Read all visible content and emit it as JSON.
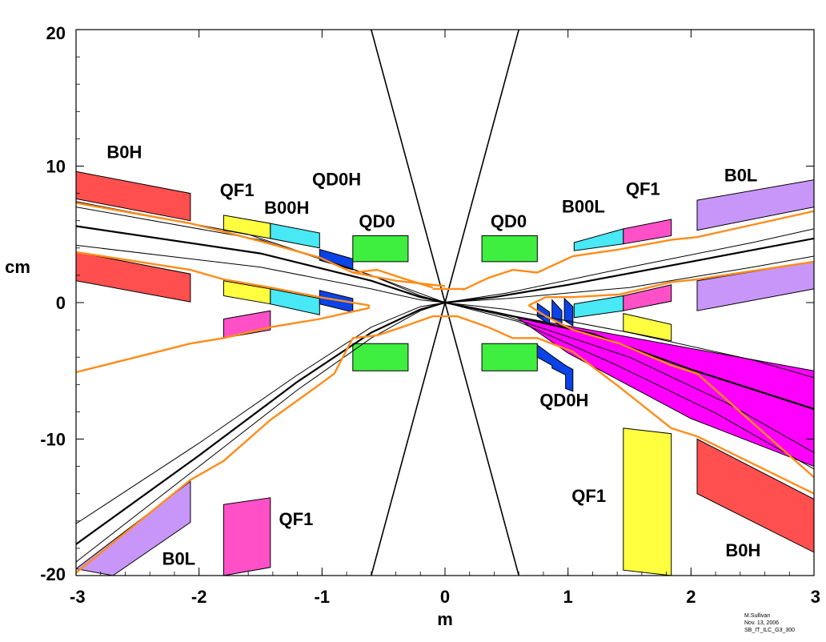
{
  "axes": {
    "x_label": "m",
    "y_label": "cm",
    "xlim": [
      -3,
      3
    ],
    "ylim": [
      -20,
      20
    ],
    "x_ticks": [
      {
        "value": -3,
        "label": "-3"
      },
      {
        "value": -2,
        "label": "-2"
      },
      {
        "value": -1,
        "label": "-1"
      },
      {
        "value": 0,
        "label": "0"
      },
      {
        "value": 1,
        "label": "1"
      },
      {
        "value": 2,
        "label": "2"
      },
      {
        "value": 3,
        "label": "3"
      }
    ],
    "y_ticks": [
      {
        "value": 20,
        "label": "20"
      },
      {
        "value": 10,
        "label": "10"
      },
      {
        "value": 0,
        "label": "0"
      },
      {
        "value": -10,
        "label": "-10"
      },
      {
        "value": -20,
        "label": "-20"
      }
    ]
  },
  "colors": {
    "red": "#ff4f4f",
    "yellow": "#ffff40",
    "cyan": "#48e8f4",
    "blue": "#0b43e6",
    "green": "#3fef3f",
    "pink": "#ff50c8",
    "lavender": "#c896f8",
    "magenta": "#ff00ff",
    "orange": "#ff8c1a"
  },
  "magnets": [
    {
      "name": "B0H",
      "color": "red",
      "pts": [
        [
          -3,
          9.6
        ],
        [
          -2.07,
          8
        ],
        [
          -2.07,
          6
        ],
        [
          -3,
          7.6
        ]
      ]
    },
    {
      "name": "B0H",
      "color": "red",
      "pts": [
        [
          -3,
          3.7
        ],
        [
          -2.07,
          2.1
        ],
        [
          -2.07,
          0.05
        ],
        [
          -3,
          1.6
        ]
      ]
    },
    {
      "name": "QF1",
      "color": "yellow",
      "pts": [
        [
          -1.8,
          6.4
        ],
        [
          -1.42,
          5.8
        ],
        [
          -1.42,
          4.7
        ],
        [
          -1.8,
          5.3
        ]
      ]
    },
    {
      "name": "QF1",
      "color": "yellow",
      "pts": [
        [
          -1.8,
          1.6
        ],
        [
          -1.42,
          1.0
        ],
        [
          -1.42,
          -0.1
        ],
        [
          -1.8,
          0.5
        ]
      ]
    },
    {
      "name": "QF1",
      "color": "pink",
      "pts": [
        [
          -1.8,
          -1.2
        ],
        [
          -1.42,
          -0.6
        ],
        [
          -1.42,
          -2.0
        ],
        [
          -1.8,
          -2.6
        ]
      ]
    },
    {
      "name": "B00H",
      "color": "cyan",
      "pts": [
        [
          -1.42,
          5.8
        ],
        [
          -1.02,
          5.1
        ],
        [
          -1.02,
          4.0
        ],
        [
          -1.42,
          4.7
        ]
      ]
    },
    {
      "name": "B00H",
      "color": "cyan",
      "pts": [
        [
          -1.42,
          1.0
        ],
        [
          -1.02,
          0.3
        ],
        [
          -1.02,
          -0.9
        ],
        [
          -1.42,
          -0.1
        ]
      ]
    },
    {
      "name": "QD0H",
      "color": "blue",
      "pts": [
        [
          -1.02,
          3.9
        ],
        [
          -0.75,
          3.2
        ],
        [
          -0.75,
          2.4
        ],
        [
          -1.02,
          3.1
        ]
      ]
    },
    {
      "name": "QD0H",
      "color": "blue",
      "pts": [
        [
          -1.02,
          0.9
        ],
        [
          -0.75,
          0.3
        ],
        [
          -0.75,
          -0.7
        ],
        [
          -1.02,
          -0.1
        ]
      ]
    },
    {
      "name": "QD0",
      "color": "green",
      "pts": [
        [
          -0.75,
          4.9
        ],
        [
          -0.3,
          4.9
        ],
        [
          -0.3,
          3.0
        ],
        [
          -0.75,
          3.0
        ]
      ]
    },
    {
      "name": "QD0",
      "color": "green",
      "pts": [
        [
          -0.75,
          -3.0
        ],
        [
          -0.3,
          -3.0
        ],
        [
          -0.3,
          -5.0
        ],
        [
          -0.75,
          -5.0
        ]
      ]
    },
    {
      "name": "QD0",
      "color": "green",
      "pts": [
        [
          0.3,
          4.9
        ],
        [
          0.75,
          4.9
        ],
        [
          0.75,
          3.0
        ],
        [
          0.3,
          3.0
        ]
      ]
    },
    {
      "name": "QD0",
      "color": "green",
      "pts": [
        [
          0.3,
          -3.0
        ],
        [
          0.75,
          -3.0
        ],
        [
          0.75,
          -5.0
        ],
        [
          0.3,
          -5.0
        ]
      ]
    },
    {
      "name": "B00L",
      "color": "cyan",
      "pts": [
        [
          1.05,
          4.4
        ],
        [
          1.45,
          5.4
        ],
        [
          1.45,
          4.3
        ],
        [
          1.05,
          3.8
        ]
      ]
    },
    {
      "name": "B00L",
      "color": "cyan",
      "pts": [
        [
          1.05,
          -0.1
        ],
        [
          1.45,
          0.5
        ],
        [
          1.45,
          -0.6
        ],
        [
          1.05,
          -1.1
        ]
      ]
    },
    {
      "name": "QF1",
      "color": "pink",
      "pts": [
        [
          1.45,
          5.4
        ],
        [
          1.84,
          6.1
        ],
        [
          1.84,
          4.9
        ],
        [
          1.45,
          4.3
        ]
      ]
    },
    {
      "name": "QF1",
      "color": "pink",
      "pts": [
        [
          1.45,
          0.5
        ],
        [
          1.84,
          1.3
        ],
        [
          1.84,
          0.1
        ],
        [
          1.45,
          -0.6
        ]
      ]
    },
    {
      "name": "QF1",
      "color": "yellow",
      "pts": [
        [
          1.45,
          -0.8
        ],
        [
          1.84,
          -1.6
        ],
        [
          1.84,
          -2.8
        ],
        [
          1.45,
          -2.1
        ]
      ]
    },
    {
      "name": "QF1",
      "color": "yellow",
      "pts": [
        [
          1.45,
          -9.2
        ],
        [
          1.84,
          -9.6
        ],
        [
          1.84,
          -20.0
        ],
        [
          1.45,
          -19.6
        ]
      ]
    },
    {
      "name": "B0L",
      "color": "lavender",
      "pts": [
        [
          2.05,
          7.5
        ],
        [
          3,
          9.0
        ],
        [
          3,
          7.0
        ],
        [
          2.05,
          5.3
        ]
      ]
    },
    {
      "name": "B0L",
      "color": "lavender",
      "pts": [
        [
          2.05,
          1.6
        ],
        [
          3,
          3.0
        ],
        [
          3,
          1.0
        ],
        [
          2.05,
          -0.6
        ]
      ]
    },
    {
      "name": "B0H",
      "color": "red",
      "pts": [
        [
          2.05,
          -10.0
        ],
        [
          3,
          -14.4
        ],
        [
          3,
          -18.3
        ],
        [
          2.05,
          -14.0
        ]
      ]
    },
    {
      "name": "QF1",
      "color": "pink",
      "pts": [
        [
          -1.8,
          -14.8
        ],
        [
          -1.42,
          -14.3
        ],
        [
          -1.42,
          -19.4
        ],
        [
          -1.8,
          -20.0
        ]
      ]
    },
    {
      "name": "B0L",
      "color": "lavender",
      "pts": [
        [
          -2.7,
          -20.0
        ],
        [
          -2.07,
          -16.1
        ],
        [
          -2.07,
          -13.1
        ],
        [
          -3,
          -19.5
        ]
      ]
    }
  ],
  "magnet_blue_steps": [
    {
      "name": "QD0H",
      "color": "blue",
      "pts": [
        [
          0.75,
          -0.05
        ],
        [
          0.85,
          -0.7
        ],
        [
          0.85,
          -1.6
        ],
        [
          0.75,
          -1.0
        ]
      ]
    },
    {
      "name": "QD0H",
      "color": "blue",
      "pts": [
        [
          0.87,
          0.2
        ],
        [
          0.95,
          -0.6
        ],
        [
          0.95,
          -1.8
        ],
        [
          0.87,
          -1.2
        ]
      ]
    },
    {
      "name": "QD0H",
      "color": "blue",
      "pts": [
        [
          0.97,
          0.3
        ],
        [
          1.04,
          -0.3
        ],
        [
          1.04,
          -1.7
        ],
        [
          0.97,
          -1.3
        ]
      ]
    },
    {
      "name": "QD0H",
      "color": "blue",
      "pts": [
        [
          0.75,
          -3.1
        ],
        [
          0.87,
          -3.9
        ],
        [
          0.98,
          -4.6
        ],
        [
          1.04,
          -4.9
        ],
        [
          1.04,
          -6.5
        ],
        [
          0.98,
          -6.3
        ],
        [
          0.98,
          -5.3
        ],
        [
          0.87,
          -4.8
        ],
        [
          0.87,
          -4.6
        ],
        [
          0.75,
          -4.0
        ]
      ]
    }
  ],
  "magenta_fan": [
    [
      0.57,
      -1.0
    ],
    [
      3,
      -5.0
    ],
    [
      3,
      -12.0
    ],
    [
      2.0,
      -8.5
    ],
    [
      1.0,
      -3.7
    ]
  ],
  "beam_lines": [
    {
      "kind": "thick",
      "pts": [
        [
          -3,
          5.6
        ],
        [
          -1.5,
          3.6
        ],
        [
          -0.6,
          1.6
        ],
        [
          -0.2,
          0.4
        ],
        [
          0,
          0
        ],
        [
          0.4,
          -0.7
        ],
        [
          1.2,
          -2.3
        ],
        [
          2.0,
          -4.9
        ],
        [
          3,
          -7.8
        ]
      ]
    },
    {
      "kind": "thick",
      "pts": [
        [
          -3,
          -17.7
        ],
        [
          -2.0,
          -11.2
        ],
        [
          -1.2,
          -5.8
        ],
        [
          -0.6,
          -2.2
        ],
        [
          -0.2,
          -0.5
        ],
        [
          0,
          0
        ],
        [
          0.4,
          0.4
        ],
        [
          1.0,
          1.3
        ],
        [
          2.0,
          3.0
        ],
        [
          3,
          4.7
        ]
      ]
    },
    {
      "kind": "thin",
      "pts": [
        [
          -3,
          7.0
        ],
        [
          -1.5,
          4.6
        ],
        [
          -0.6,
          2.0
        ],
        [
          -0.2,
          0.5
        ],
        [
          0,
          0
        ],
        [
          0.5,
          -1.0
        ],
        [
          1.5,
          -4.0
        ],
        [
          2.3,
          -7.4
        ],
        [
          3,
          -11.0
        ]
      ]
    },
    {
      "kind": "thin",
      "pts": [
        [
          -3,
          4.2
        ],
        [
          -1.5,
          2.6
        ],
        [
          -0.6,
          1.0
        ],
        [
          -0.2,
          0.2
        ],
        [
          0,
          0
        ],
        [
          0.5,
          -0.5
        ],
        [
          1.5,
          -2.2
        ],
        [
          2.5,
          -4.2
        ],
        [
          3,
          -5.5
        ]
      ]
    },
    {
      "kind": "thin",
      "pts": [
        [
          -3,
          -16.2
        ],
        [
          -2.0,
          -10.3
        ],
        [
          -1.2,
          -5.3
        ],
        [
          -0.6,
          -1.8
        ],
        [
          -0.2,
          -0.3
        ],
        [
          0,
          0
        ],
        [
          0.5,
          0.7
        ],
        [
          1.5,
          2.6
        ],
        [
          2.5,
          4.4
        ],
        [
          3,
          5.4
        ]
      ]
    },
    {
      "kind": "thin",
      "pts": [
        [
          -3,
          -19.0
        ],
        [
          -2.0,
          -12.0
        ],
        [
          -1.2,
          -6.4
        ],
        [
          -0.6,
          -2.6
        ],
        [
          -0.2,
          -0.6
        ],
        [
          0,
          0
        ],
        [
          0.5,
          0.3
        ],
        [
          1.5,
          1.1
        ],
        [
          2.5,
          2.6
        ],
        [
          3,
          3.4
        ]
      ]
    },
    {
      "kind": "thin",
      "pts": [
        [
          -3,
          7.4
        ],
        [
          -1.6,
          5.0
        ],
        [
          -0.6,
          2.0
        ],
        [
          0,
          0
        ]
      ]
    },
    {
      "kind": "thin",
      "pts": [
        [
          0,
          0
        ],
        [
          0.6,
          -1.4
        ],
        [
          1.4,
          -4.6
        ],
        [
          2.2,
          -8.1
        ],
        [
          3,
          -12.2
        ]
      ]
    }
  ],
  "detector_lines": [
    {
      "pts": [
        [
          -0.6,
          20
        ],
        [
          0,
          0
        ],
        [
          -0.6,
          -20
        ]
      ]
    },
    {
      "pts": [
        [
          0.6,
          20
        ],
        [
          0,
          0
        ],
        [
          0.6,
          -20
        ]
      ]
    }
  ],
  "orange_lines": [
    {
      "pts": [
        [
          -3,
          7.3
        ],
        [
          -2.07,
          5.8
        ],
        [
          -1.8,
          5.2
        ],
        [
          -1.42,
          4.3
        ],
        [
          -1.02,
          3.3
        ],
        [
          -0.75,
          2.2
        ],
        [
          -0.4,
          1.6
        ],
        [
          0,
          1.2
        ]
      ]
    },
    {
      "pts": [
        [
          -3,
          3.7
        ],
        [
          -2.07,
          2.4
        ],
        [
          -1.8,
          1.7
        ],
        [
          -1.42,
          1.1
        ],
        [
          -1.02,
          0.4
        ],
        [
          -0.62,
          -0.2
        ],
        [
          -0.62,
          -0.4
        ],
        [
          -1.02,
          -1.2
        ],
        [
          -1.42,
          -1.8
        ],
        [
          -1.8,
          -2.6
        ],
        [
          -2.07,
          -3.0
        ],
        [
          -3,
          -5.1
        ]
      ]
    },
    {
      "pts": [
        [
          -3,
          -19.8
        ],
        [
          -2.07,
          -13.0
        ],
        [
          -1.8,
          -11.6
        ],
        [
          -1.42,
          -8.6
        ],
        [
          -1.02,
          -6.0
        ],
        [
          -0.9,
          -5.2
        ],
        [
          -0.75,
          -2.6
        ],
        [
          -0.55,
          -2.4
        ],
        [
          -0.35,
          -1.8
        ],
        [
          -0.1,
          -1.0
        ],
        [
          0.1,
          -1.0
        ],
        [
          0.35,
          -1.8
        ],
        [
          0.55,
          -2.6
        ],
        [
          0.75,
          -2.6
        ],
        [
          1.04,
          -3.6
        ],
        [
          1.42,
          -6.2
        ],
        [
          1.84,
          -9.2
        ],
        [
          2.05,
          -9.8
        ],
        [
          3,
          -14.0
        ]
      ]
    },
    {
      "pts": [
        [
          -0.1,
          1.0
        ],
        [
          0.1,
          1.0
        ],
        [
          0.15,
          1.0
        ],
        [
          0.15,
          0.95
        ],
        [
          0.35,
          1.8
        ],
        [
          0.55,
          2.4
        ],
        [
          0.75,
          2.2
        ],
        [
          1.04,
          3.4
        ],
        [
          1.42,
          3.9
        ],
        [
          1.84,
          4.6
        ],
        [
          2.05,
          4.8
        ],
        [
          3,
          6.7
        ]
      ]
    },
    {
      "pts": [
        [
          0.68,
          -0.2
        ],
        [
          0.82,
          0.4
        ],
        [
          1.04,
          0.4
        ],
        [
          1.42,
          0.6
        ],
        [
          1.84,
          1.5
        ],
        [
          2.05,
          1.7
        ],
        [
          3,
          3.0
        ]
      ]
    },
    {
      "pts": [
        [
          0.68,
          -0.2
        ],
        [
          0.82,
          -1.0
        ],
        [
          1.04,
          -2.0
        ],
        [
          1.42,
          -3.0
        ],
        [
          1.84,
          -4.6
        ],
        [
          2.05,
          -5.2
        ],
        [
          3,
          -12.8
        ]
      ]
    },
    {
      "pts": [
        [
          -0.1,
          1.1
        ],
        [
          -0.35,
          1.8
        ],
        [
          -0.55,
          2.4
        ],
        [
          -0.75,
          2.2
        ]
      ]
    }
  ],
  "labels": [
    {
      "text": "B0H",
      "x": -2.75,
      "y": 10.6
    },
    {
      "text": "QF1",
      "x": -1.83,
      "y": 7.8
    },
    {
      "text": "B00H",
      "x": -1.47,
      "y": 6.5
    },
    {
      "text": "QD0H",
      "x": -1.08,
      "y": 8.6
    },
    {
      "text": "QD0",
      "x": -0.7,
      "y": 5.5
    },
    {
      "text": "QD0",
      "x": 0.37,
      "y": 5.5
    },
    {
      "text": "B00L",
      "x": 0.95,
      "y": 6.6
    },
    {
      "text": "QF1",
      "x": 1.47,
      "y": 7.9
    },
    {
      "text": "B0L",
      "x": 2.27,
      "y": 8.9
    },
    {
      "text": "QD0H",
      "x": 0.77,
      "y": -7.6
    },
    {
      "text": "QF1",
      "x": 1.03,
      "y": -14.6
    },
    {
      "text": "QF1",
      "x": -1.35,
      "y": -16.3
    },
    {
      "text": "B0L",
      "x": -2.3,
      "y": -19.2
    },
    {
      "text": "B0H",
      "x": 2.28,
      "y": -18.6
    }
  ],
  "credit": [
    "M.Sullivan",
    "Nov. 13, 2006",
    "SB_IT_ILC_G3_300"
  ]
}
